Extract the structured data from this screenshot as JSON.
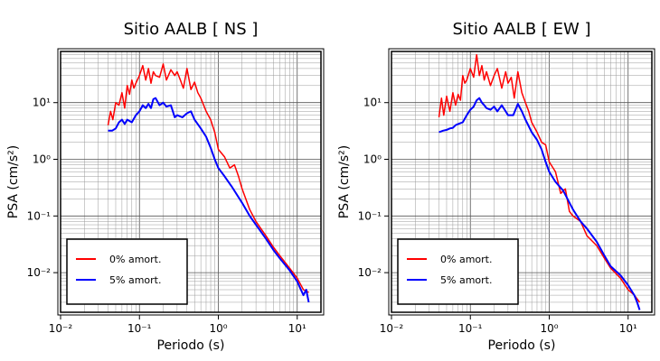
{
  "chart_data": [
    {
      "type": "line",
      "title": "Sitio AALB [ NS ]",
      "xlabel": "Periodo (s)",
      "ylabel": "PSA (cm/s²)",
      "xscale": "log",
      "yscale": "log",
      "xlim": [
        0.01,
        20
      ],
      "ylim": [
        0.002,
        80
      ],
      "x_ticks": [
        0.01,
        0.1,
        1,
        10
      ],
      "x_tick_labels": [
        "10⁻²",
        "10⁻¹",
        "10⁰",
        "10¹"
      ],
      "y_ticks": [
        0.01,
        0.1,
        1,
        10
      ],
      "y_tick_labels": [
        "10⁻²",
        "10⁻¹",
        "10⁰",
        "10¹"
      ],
      "grid": true,
      "legend_position": "bottom-left",
      "series": [
        {
          "name": "0% amort.",
          "color": "#ff0000",
          "x": [
            0.04,
            0.043,
            0.046,
            0.05,
            0.055,
            0.06,
            0.065,
            0.07,
            0.075,
            0.08,
            0.085,
            0.09,
            0.1,
            0.11,
            0.12,
            0.13,
            0.14,
            0.15,
            0.16,
            0.18,
            0.2,
            0.22,
            0.25,
            0.28,
            0.3,
            0.33,
            0.36,
            0.4,
            0.45,
            0.5,
            0.55,
            0.6,
            0.7,
            0.8,
            0.9,
            1.0,
            1.2,
            1.4,
            1.6,
            1.8,
            2.0,
            2.5,
            3.0,
            4.0,
            5.0,
            6.0,
            8.0,
            10.0,
            12.0,
            14.0
          ],
          "y": [
            4.0,
            7.0,
            5.0,
            10.0,
            9.0,
            15.0,
            8.0,
            20.0,
            14.0,
            25.0,
            18.0,
            22.0,
            30.0,
            45.0,
            25.0,
            40.0,
            22.0,
            35.0,
            30.0,
            28.0,
            48.0,
            25.0,
            38.0,
            30.0,
            35.0,
            25.0,
            18.0,
            40.0,
            17.0,
            23.0,
            15.0,
            12.0,
            7.0,
            5.0,
            3.0,
            1.5,
            1.1,
            0.7,
            0.8,
            0.5,
            0.3,
            0.13,
            0.08,
            0.045,
            0.028,
            0.02,
            0.012,
            0.008,
            0.005,
            0.0045
          ]
        },
        {
          "name": "5% amort.",
          "color": "#0000ff",
          "x": [
            0.04,
            0.045,
            0.05,
            0.055,
            0.06,
            0.065,
            0.07,
            0.08,
            0.09,
            0.1,
            0.11,
            0.12,
            0.13,
            0.14,
            0.15,
            0.16,
            0.18,
            0.2,
            0.22,
            0.25,
            0.28,
            0.3,
            0.35,
            0.4,
            0.45,
            0.5,
            0.6,
            0.7,
            0.8,
            0.9,
            1.0,
            1.2,
            1.5,
            2.0,
            2.5,
            3.0,
            4.0,
            5.0,
            6.0,
            8.0,
            10.0,
            12.0,
            13.0,
            14.0
          ],
          "y": [
            3.2,
            3.2,
            3.5,
            4.5,
            5.0,
            4.2,
            5.0,
            4.5,
            6.0,
            7.0,
            9.0,
            8.0,
            9.5,
            8.0,
            11.5,
            12.0,
            9.0,
            10.0,
            8.5,
            9.0,
            5.5,
            6.0,
            5.5,
            6.5,
            7.0,
            5.0,
            3.5,
            2.5,
            1.6,
            1.0,
            0.7,
            0.5,
            0.32,
            0.17,
            0.1,
            0.07,
            0.04,
            0.025,
            0.018,
            0.011,
            0.007,
            0.004,
            0.005,
            0.003
          ]
        }
      ]
    },
    {
      "type": "line",
      "title": "Sitio AALB [ EW ]",
      "xlabel": "Periodo (s)",
      "ylabel": "PSA (cm/s²)",
      "xscale": "log",
      "yscale": "log",
      "xlim": [
        0.01,
        20
      ],
      "ylim": [
        0.002,
        80
      ],
      "x_ticks": [
        0.01,
        0.1,
        1,
        10
      ],
      "x_tick_labels": [
        "10⁻²",
        "10⁻¹",
        "10⁰",
        "10¹"
      ],
      "y_ticks": [
        0.01,
        0.1,
        1,
        10
      ],
      "y_tick_labels": [
        "10⁻²",
        "10⁻¹",
        "10⁰",
        "10¹"
      ],
      "grid": true,
      "legend_position": "bottom-left",
      "series": [
        {
          "name": "0% amort.",
          "color": "#ff0000",
          "x": [
            0.04,
            0.043,
            0.046,
            0.05,
            0.055,
            0.06,
            0.065,
            0.07,
            0.075,
            0.08,
            0.085,
            0.09,
            0.1,
            0.11,
            0.12,
            0.13,
            0.14,
            0.15,
            0.16,
            0.18,
            0.2,
            0.22,
            0.25,
            0.28,
            0.3,
            0.33,
            0.36,
            0.4,
            0.45,
            0.5,
            0.55,
            0.6,
            0.7,
            0.8,
            0.9,
            1.0,
            1.2,
            1.4,
            1.6,
            1.8,
            2.0,
            2.5,
            3.0,
            4.0,
            5.0,
            6.0,
            8.0,
            10.0,
            12.0,
            14.0
          ],
          "y": [
            5.5,
            12.0,
            6.0,
            13.0,
            7.0,
            15.0,
            9.0,
            14.0,
            11.0,
            30.0,
            22.0,
            25.0,
            40.0,
            28.0,
            70.0,
            30.0,
            45.0,
            25.0,
            35.0,
            20.0,
            30.0,
            40.0,
            18.0,
            35.0,
            22.0,
            28.0,
            12.0,
            35.0,
            15.0,
            10.0,
            7.0,
            4.5,
            3.0,
            2.0,
            1.8,
            0.9,
            0.6,
            0.25,
            0.3,
            0.12,
            0.1,
            0.08,
            0.045,
            0.03,
            0.018,
            0.012,
            0.008,
            0.005,
            0.004,
            0.003
          ]
        },
        {
          "name": "5% amort.",
          "color": "#0000ff",
          "x": [
            0.04,
            0.045,
            0.05,
            0.055,
            0.06,
            0.065,
            0.07,
            0.08,
            0.09,
            0.1,
            0.11,
            0.12,
            0.13,
            0.14,
            0.15,
            0.16,
            0.18,
            0.2,
            0.22,
            0.25,
            0.28,
            0.3,
            0.35,
            0.4,
            0.45,
            0.5,
            0.6,
            0.7,
            0.8,
            0.9,
            1.0,
            1.2,
            1.5,
            2.0,
            2.5,
            3.0,
            4.0,
            5.0,
            6.0,
            8.0,
            10.0,
            12.0,
            13.0,
            14.0
          ],
          "y": [
            3.0,
            3.2,
            3.3,
            3.5,
            3.6,
            4.0,
            4.2,
            4.5,
            6.0,
            7.5,
            8.5,
            11.0,
            12.0,
            10.0,
            9.0,
            8.0,
            7.5,
            8.5,
            7.0,
            9.0,
            7.0,
            6.0,
            6.0,
            9.5,
            7.0,
            5.0,
            3.0,
            2.2,
            1.5,
            0.9,
            0.6,
            0.4,
            0.28,
            0.13,
            0.08,
            0.06,
            0.035,
            0.02,
            0.013,
            0.009,
            0.006,
            0.004,
            0.003,
            0.0022
          ]
        }
      ]
    }
  ]
}
